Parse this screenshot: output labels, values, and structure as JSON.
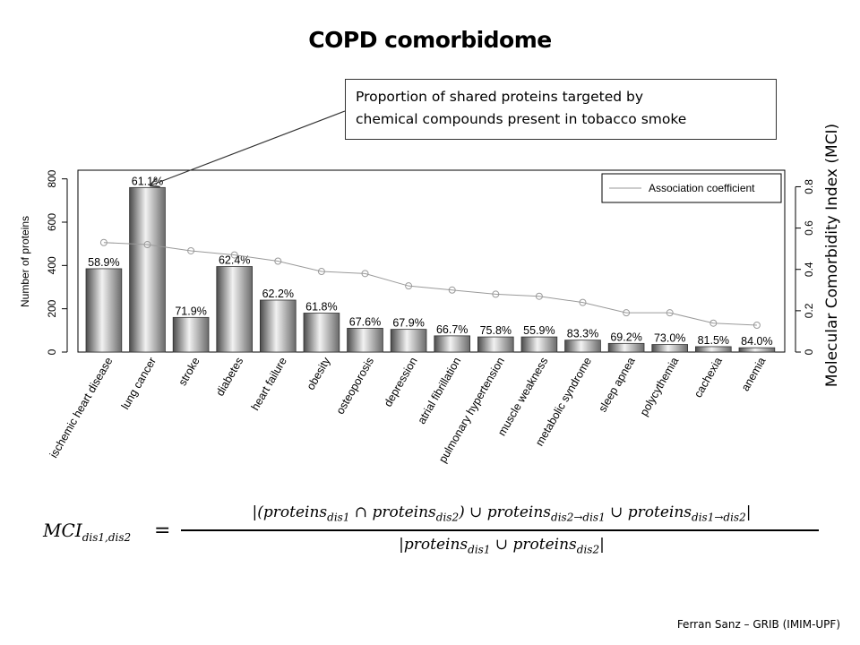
{
  "title": "COPD comorbidome",
  "callout": {
    "line1": "Proportion of shared proteins targeted by",
    "line2": "chemical compounds present in tobacco smoke"
  },
  "chart_data": {
    "type": "bar",
    "categories": [
      "ischemic heart disease",
      "lung cancer",
      "stroke",
      "diabetes",
      "heart failure",
      "obesity",
      "osteoporosis",
      "depression",
      "atrial fibrillation",
      "pulmonary hypertension",
      "muscle weakness",
      "metabolic syndrome",
      "sleep apnea",
      "polycythemia",
      "cachexia",
      "anemia"
    ],
    "values": [
      385,
      760,
      160,
      395,
      240,
      180,
      110,
      105,
      75,
      70,
      70,
      55,
      40,
      35,
      25,
      20
    ],
    "bar_labels": [
      "58.9%",
      "61.1%",
      "71.9%",
      "62.4%",
      "62.2%",
      "61.8%",
      "67.6%",
      "67.9%",
      "66.7%",
      "75.8%",
      "55.9%",
      "83.3%",
      "69.2%",
      "73.0%",
      "81.5%",
      "84.0%"
    ],
    "line_series": {
      "name": "Association coefficient",
      "values": [
        0.53,
        0.52,
        0.49,
        0.47,
        0.44,
        0.39,
        0.38,
        0.32,
        0.3,
        0.28,
        0.27,
        0.24,
        0.19,
        0.19,
        0.14,
        0.13
      ]
    },
    "ylabel": "Number of proteins",
    "ylim": [
      0,
      840
    ],
    "yticks": [
      0,
      200,
      400,
      600,
      800
    ],
    "y2label": "Molecular Comorbidity Index (MCI)",
    "y2lim": [
      0,
      0.88
    ],
    "y2ticks": [
      "0",
      "0.2",
      "0.4",
      "0.6",
      "0.8"
    ],
    "legend_position": "top-right",
    "colors": {
      "bar_dark": "#4a4a4a",
      "bar_light": "#f2f2f2",
      "line": "#9a9a9a"
    }
  },
  "formula": {
    "lhs": "MCI",
    "lhs_sub": "dis1,dis2",
    "eq": "=",
    "numerator": [
      {
        "t": "|(proteins"
      },
      {
        "s": "dis1"
      },
      {
        "t": " ∩ proteins"
      },
      {
        "s": "dis2"
      },
      {
        "t": ") ∪ proteins"
      },
      {
        "s": "dis2→dis1"
      },
      {
        "t": " ∪ proteins"
      },
      {
        "s": "dis1→dis2"
      },
      {
        "t": "|"
      }
    ],
    "denominator": [
      {
        "t": "|proteins"
      },
      {
        "s": "dis1"
      },
      {
        "t": " ∪ proteins"
      },
      {
        "s": "dis2"
      },
      {
        "t": "|"
      }
    ]
  },
  "credit": "Ferran Sanz – GRIB (IMIM-UPF)"
}
